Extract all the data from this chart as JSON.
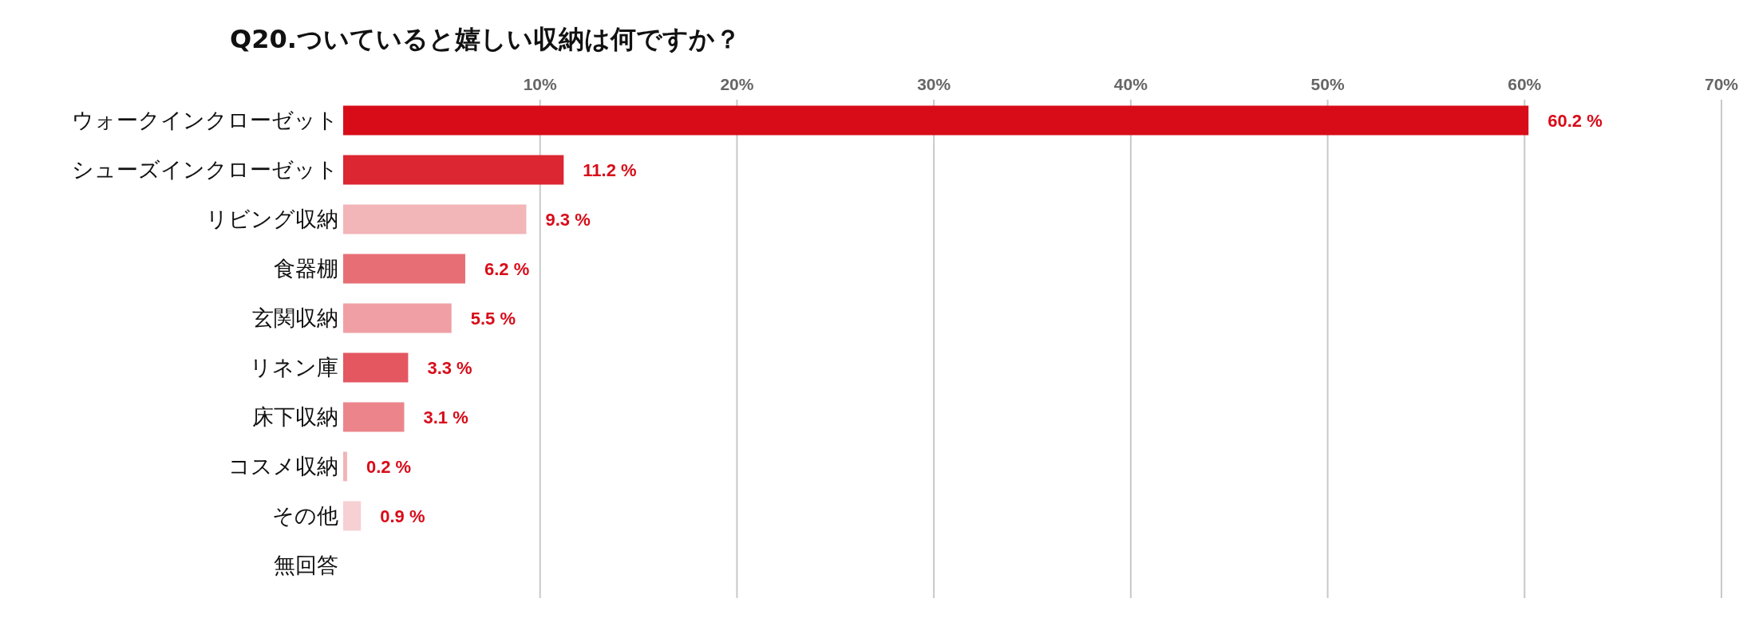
{
  "chart_data": {
    "type": "bar",
    "orientation": "horizontal",
    "title": "Q20.ついていると嬉しい収納は何ですか？",
    "categories": [
      "ウォークインクローゼット",
      "シューズインクローゼット",
      "リビング収納",
      "食器棚",
      "玄関収納",
      "リネン庫",
      "床下収納",
      "コスメ収納",
      "その他",
      "無回答"
    ],
    "values": [
      60.2,
      11.2,
      9.3,
      6.2,
      5.5,
      3.3,
      3.1,
      0.2,
      0.9,
      null
    ],
    "colors": [
      "#d80c19",
      "#dc2632",
      "#f2b5b8",
      "#e86e76",
      "#f0a0a5",
      "#e45761",
      "#ec858b",
      "#f2b5b8",
      "#f6d0d3",
      null
    ],
    "value_labels": [
      "60.2 %",
      "11.2 %",
      "9.3 %",
      "6.2 %",
      "5.5 %",
      "3.3 %",
      "3.1 %",
      "0.2 %",
      "0.9 %",
      null
    ],
    "xlim": [
      0,
      70
    ],
    "xticks": [
      {
        "value": 10,
        "label": "10%"
      },
      {
        "value": 20,
        "label": "20%"
      },
      {
        "value": 30,
        "label": "30%"
      },
      {
        "value": 40,
        "label": "40%"
      },
      {
        "value": 50,
        "label": "50%"
      },
      {
        "value": 60,
        "label": "60%"
      },
      {
        "value": 70,
        "label": "70%"
      }
    ],
    "grid": "x"
  }
}
